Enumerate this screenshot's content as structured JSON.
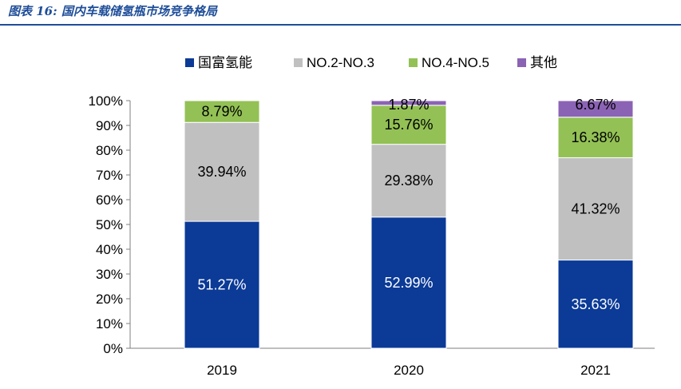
{
  "header": {
    "figure_label": "图表 16:",
    "title": "国内车载储氢瓶市场竞争格局"
  },
  "colors": {
    "header": "#1F4E99",
    "series": [
      "#0B3A97",
      "#C0C0C0",
      "#93C155",
      "#8B63B5"
    ]
  },
  "chart_data": {
    "type": "stacked-bar",
    "title": "国内车载储氢瓶市场竞争格局",
    "categories": [
      "2019",
      "2020",
      "2021"
    ],
    "series": [
      {
        "name": "国富氢能",
        "values": [
          51.27,
          52.99,
          35.63
        ],
        "labels": [
          "51.27%",
          "52.99%",
          "35.63%"
        ]
      },
      {
        "name": "NO.2-NO.3",
        "values": [
          39.94,
          29.38,
          41.32
        ],
        "labels": [
          "39.94%",
          "29.38%",
          "41.32%"
        ]
      },
      {
        "name": "NO.4-NO.5",
        "values": [
          8.79,
          15.76,
          16.38
        ],
        "labels": [
          "8.79%",
          "15.76%",
          "16.38%"
        ]
      },
      {
        "name": "其他",
        "values": [
          0,
          1.87,
          6.67
        ],
        "labels": [
          "",
          "1.87%",
          "6.67%"
        ]
      }
    ],
    "ylim": [
      0,
      100
    ],
    "yticks": [
      "0%",
      "10%",
      "20%",
      "30%",
      "40%",
      "50%",
      "60%",
      "70%",
      "80%",
      "90%",
      "100%"
    ],
    "xlabel": "",
    "ylabel": "",
    "legend_position": "top",
    "grid": false
  }
}
